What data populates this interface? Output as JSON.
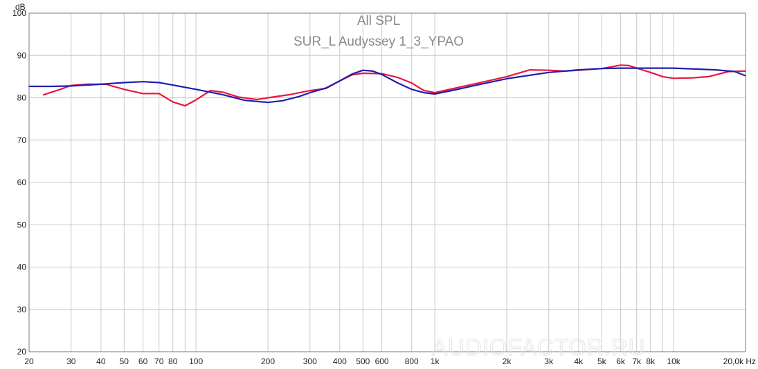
{
  "chart_data": {
    "type": "line",
    "title": "All SPL",
    "subtitle": "SUR_L Audyssey 1_3_YPAO",
    "ylabel": "dB",
    "xunit": "Hz",
    "x_scale": "log",
    "xlim": [
      20,
      20000
    ],
    "ylim": [
      20,
      100
    ],
    "y_ticks": [
      20,
      30,
      40,
      50,
      60,
      70,
      80,
      90,
      100
    ],
    "x_major": [
      20,
      30,
      40,
      50,
      60,
      70,
      80,
      90,
      100,
      200,
      300,
      400,
      500,
      600,
      800,
      1000,
      2000,
      3000,
      4000,
      5000,
      6000,
      7000,
      8000,
      9000,
      10000,
      20000
    ],
    "x_tick_labels": [
      {
        "x": 20,
        "label": "20"
      },
      {
        "x": 30,
        "label": "30"
      },
      {
        "x": 40,
        "label": "40"
      },
      {
        "x": 50,
        "label": "50"
      },
      {
        "x": 60,
        "label": "60"
      },
      {
        "x": 70,
        "label": "70"
      },
      {
        "x": 80,
        "label": "80"
      },
      {
        "x": 100,
        "label": "100"
      },
      {
        "x": 200,
        "label": "200"
      },
      {
        "x": 300,
        "label": "300"
      },
      {
        "x": 400,
        "label": "400"
      },
      {
        "x": 500,
        "label": "500"
      },
      {
        "x": 600,
        "label": "600"
      },
      {
        "x": 800,
        "label": "800"
      },
      {
        "x": 1000,
        "label": "1k"
      },
      {
        "x": 2000,
        "label": "2k"
      },
      {
        "x": 3000,
        "label": "3k"
      },
      {
        "x": 4000,
        "label": "4k"
      },
      {
        "x": 5000,
        "label": "5k"
      },
      {
        "x": 6000,
        "label": "6k"
      },
      {
        "x": 7000,
        "label": "7k"
      },
      {
        "x": 8000,
        "label": "8k"
      },
      {
        "x": 10000,
        "label": "10k"
      },
      {
        "x": 20000,
        "label": "20,0k Hz"
      }
    ],
    "grid": true,
    "legend": "none",
    "series": [
      {
        "color": "#e8173f",
        "points": [
          [
            23,
            80.7
          ],
          [
            27,
            82
          ],
          [
            30,
            82.9
          ],
          [
            35,
            83.2
          ],
          [
            42,
            83.2
          ],
          [
            50,
            82
          ],
          [
            60,
            81
          ],
          [
            70,
            81
          ],
          [
            80,
            79
          ],
          [
            90,
            78.1
          ],
          [
            100,
            79.5
          ],
          [
            115,
            81.7
          ],
          [
            130,
            81.3
          ],
          [
            150,
            80.2
          ],
          [
            180,
            79.6
          ],
          [
            200,
            80
          ],
          [
            250,
            80.8
          ],
          [
            300,
            81.7
          ],
          [
            350,
            82.2
          ],
          [
            400,
            84
          ],
          [
            450,
            85.4
          ],
          [
            500,
            85.8
          ],
          [
            600,
            85.7
          ],
          [
            700,
            84.8
          ],
          [
            800,
            83.5
          ],
          [
            900,
            81.7
          ],
          [
            1000,
            81.2
          ],
          [
            1200,
            82.2
          ],
          [
            1500,
            83.4
          ],
          [
            2000,
            85
          ],
          [
            2500,
            86.6
          ],
          [
            3000,
            86.5
          ],
          [
            3500,
            86.3
          ],
          [
            4000,
            86.5
          ],
          [
            5000,
            86.9
          ],
          [
            6000,
            87.7
          ],
          [
            6500,
            87.6
          ],
          [
            7000,
            87
          ],
          [
            8000,
            86
          ],
          [
            9000,
            85
          ],
          [
            10000,
            84.6
          ],
          [
            12000,
            84.7
          ],
          [
            14000,
            85
          ],
          [
            17000,
            86.2
          ],
          [
            20000,
            86.3
          ]
        ]
      },
      {
        "color": "#1f1fb0",
        "points": [
          [
            20,
            82.7
          ],
          [
            25,
            82.7
          ],
          [
            30,
            82.8
          ],
          [
            40,
            83.2
          ],
          [
            50,
            83.6
          ],
          [
            60,
            83.8
          ],
          [
            70,
            83.6
          ],
          [
            80,
            83
          ],
          [
            100,
            82
          ],
          [
            130,
            80.7
          ],
          [
            160,
            79.4
          ],
          [
            200,
            78.9
          ],
          [
            230,
            79.3
          ],
          [
            270,
            80.3
          ],
          [
            300,
            81.2
          ],
          [
            350,
            82.3
          ],
          [
            400,
            84
          ],
          [
            450,
            85.6
          ],
          [
            500,
            86.5
          ],
          [
            550,
            86.3
          ],
          [
            600,
            85.5
          ],
          [
            700,
            83.5
          ],
          [
            800,
            82
          ],
          [
            900,
            81.2
          ],
          [
            1000,
            80.9
          ],
          [
            1200,
            81.8
          ],
          [
            1500,
            83
          ],
          [
            2000,
            84.5
          ],
          [
            3000,
            86
          ],
          [
            4000,
            86.6
          ],
          [
            5000,
            86.9
          ],
          [
            6000,
            87
          ],
          [
            8000,
            87
          ],
          [
            10000,
            87
          ],
          [
            15000,
            86.6
          ],
          [
            18000,
            86.2
          ],
          [
            20000,
            85.2
          ]
        ]
      }
    ]
  }
}
